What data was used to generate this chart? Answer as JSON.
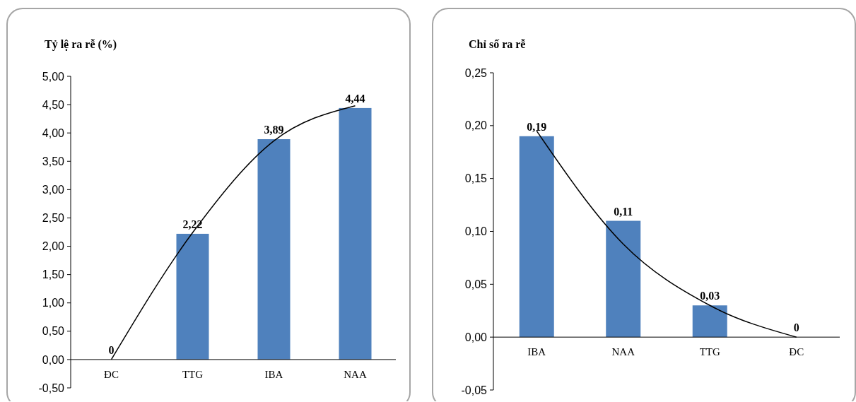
{
  "chart_data": [
    {
      "type": "bar",
      "title": "Tỷ lệ ra rễ (%)",
      "categories": [
        "ĐC",
        "TTG",
        "IBA",
        "NAA"
      ],
      "ylim": [
        -0.5,
        5
      ],
      "yticks": [
        {
          "value": -0.5,
          "label": "-0,50"
        },
        {
          "value": 0,
          "label": "0,00"
        },
        {
          "value": 0.5,
          "label": "0,50"
        },
        {
          "value": 1,
          "label": "1,00"
        },
        {
          "value": 1.5,
          "label": "1,50"
        },
        {
          "value": 2,
          "label": "2,00"
        },
        {
          "value": 2.5,
          "label": "2,50"
        },
        {
          "value": 3,
          "label": "3,00"
        },
        {
          "value": 3.5,
          "label": "3,50"
        },
        {
          "value": 4,
          "label": "4,00"
        },
        {
          "value": 4.5,
          "label": "4,50"
        },
        {
          "value": 5,
          "label": "5,00"
        }
      ],
      "series": [
        {
          "color": "#4f81bd",
          "values": [
            0,
            2.22,
            3.89,
            4.44
          ],
          "value_labels": [
            "0",
            "2,22",
            "3,89",
            "4,44"
          ]
        },
        {
          "type": "line",
          "color": "#000000",
          "values": [
            0,
            2.24,
            3.86,
            4.48
          ]
        }
      ]
    },
    {
      "type": "bar",
      "title": "Chỉ số ra rễ",
      "categories": [
        "IBA",
        "NAA",
        "TTG",
        "ĐC"
      ],
      "ylim": [
        -0.05,
        0.25
      ],
      "yticks": [
        {
          "value": -0.05,
          "label": "-0,05"
        },
        {
          "value": 0,
          "label": "0,00"
        },
        {
          "value": 0.05,
          "label": "0,05"
        },
        {
          "value": 0.1,
          "label": "0,10"
        },
        {
          "value": 0.15,
          "label": "0,15"
        },
        {
          "value": 0.2,
          "label": "0,20"
        },
        {
          "value": 0.25,
          "label": "0,25"
        }
      ],
      "series": [
        {
          "color": "#4f81bd",
          "values": [
            0.19,
            0.11,
            0.03,
            0
          ],
          "value_labels": [
            "0,19",
            "0,11",
            "0,03",
            "0"
          ]
        },
        {
          "type": "line",
          "color": "#000000",
          "values": [
            0.195,
            0.088,
            0.03,
            0
          ]
        }
      ]
    }
  ]
}
